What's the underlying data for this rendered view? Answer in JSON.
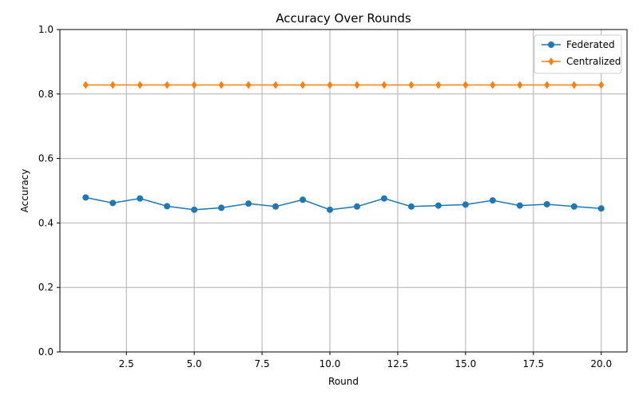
{
  "chart_data": {
    "type": "line",
    "title": "Accuracy Over Rounds",
    "xlabel": "Round",
    "ylabel": "Accuracy",
    "xlim": [
      0.05,
      20.95
    ],
    "ylim": [
      0.0,
      1.0
    ],
    "xticks": [
      2.5,
      5.0,
      7.5,
      10.0,
      12.5,
      15.0,
      17.5,
      20.0
    ],
    "xtick_labels": [
      "2.5",
      "5.0",
      "7.5",
      "10.0",
      "12.5",
      "15.0",
      "17.5",
      "20.0"
    ],
    "yticks": [
      0.0,
      0.2,
      0.4,
      0.6,
      0.8,
      1.0
    ],
    "ytick_labels": [
      "0.0",
      "0.2",
      "0.4",
      "0.6",
      "0.8",
      "1.0"
    ],
    "grid": true,
    "legend_position": "top-right",
    "x": [
      1,
      2,
      3,
      4,
      5,
      6,
      7,
      8,
      9,
      10,
      11,
      12,
      13,
      14,
      15,
      16,
      17,
      18,
      19,
      20
    ],
    "series": [
      {
        "name": "Federated",
        "color": "#1f77b4",
        "marker": "circle",
        "values": [
          0.479,
          0.462,
          0.476,
          0.452,
          0.441,
          0.447,
          0.46,
          0.451,
          0.472,
          0.441,
          0.451,
          0.476,
          0.451,
          0.454,
          0.457,
          0.47,
          0.454,
          0.458,
          0.451,
          0.445
        ]
      },
      {
        "name": "Centralized",
        "color": "#ff7f0e",
        "marker": "diamond",
        "values": [
          0.828,
          0.828,
          0.828,
          0.828,
          0.828,
          0.828,
          0.828,
          0.828,
          0.828,
          0.828,
          0.828,
          0.828,
          0.828,
          0.828,
          0.828,
          0.828,
          0.828,
          0.828,
          0.828,
          0.828
        ]
      }
    ]
  }
}
